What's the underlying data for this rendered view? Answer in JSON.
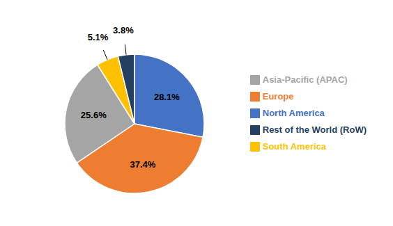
{
  "chart_data": {
    "type": "pie",
    "categories": [
      "North America",
      "Europe",
      "Asia-Pacific (APAC)",
      "South America",
      "Rest of the World (RoW)"
    ],
    "values": [
      28.1,
      37.4,
      25.6,
      5.1,
      3.8
    ],
    "value_labels": [
      "28.1%",
      "37.4%",
      "25.6%",
      "5.1%",
      "3.8%"
    ],
    "colors": [
      "#4472C4",
      "#ED7D31",
      "#A5A5A5",
      "#FFC000",
      "#243F60"
    ],
    "data_labels": true,
    "legend": "right"
  }
}
